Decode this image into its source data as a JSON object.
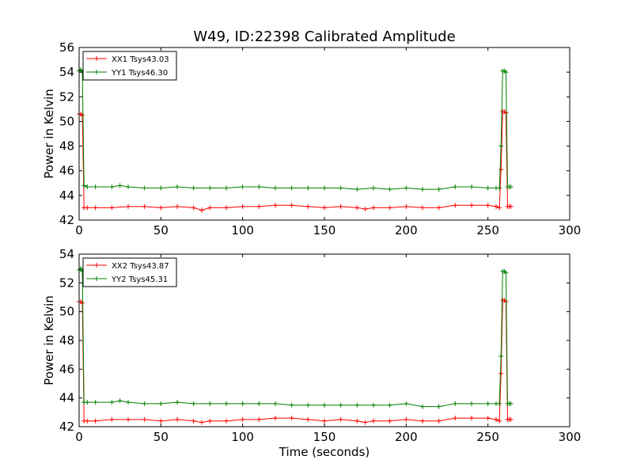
{
  "chart_data": [
    {
      "type": "line",
      "title": "W49, ID:22398 Calibrated Amplitude",
      "xlabel": "",
      "ylabel": "Power in Kelvin",
      "xlim": [
        0,
        300
      ],
      "ylim": [
        42,
        56
      ],
      "xticks": [
        0,
        50,
        100,
        150,
        200,
        250,
        300
      ],
      "yticks": [
        42,
        44,
        46,
        48,
        50,
        52,
        54,
        56
      ],
      "grid": false,
      "legend_position": "top-left",
      "series": [
        {
          "name": "XX1 Tsys43.03",
          "color": "#ff0000",
          "marker": "+",
          "x": [
            0,
            1,
            2,
            3,
            5,
            10,
            20,
            30,
            40,
            50,
            60,
            70,
            75,
            80,
            90,
            100,
            110,
            120,
            130,
            140,
            150,
            160,
            170,
            175,
            180,
            190,
            200,
            210,
            220,
            230,
            240,
            250,
            255,
            257,
            258,
            259,
            260,
            261,
            262,
            263,
            264
          ],
          "y": [
            50.6,
            50.6,
            50.5,
            43.0,
            43.0,
            43.0,
            43.0,
            43.1,
            43.1,
            43.0,
            43.1,
            43.0,
            42.8,
            43.0,
            43.0,
            43.1,
            43.1,
            43.2,
            43.2,
            43.1,
            43.0,
            43.1,
            43.0,
            42.9,
            43.0,
            43.0,
            43.1,
            43.0,
            43.0,
            43.2,
            43.2,
            43.2,
            43.1,
            43.0,
            46.1,
            50.8,
            50.8,
            50.7,
            43.1,
            43.1,
            43.1
          ]
        },
        {
          "name": "YY1 Tsys46.30",
          "color": "#008000",
          "marker": "+",
          "x": [
            0,
            1,
            2,
            3,
            5,
            10,
            20,
            25,
            30,
            40,
            50,
            60,
            70,
            80,
            90,
            100,
            110,
            120,
            130,
            140,
            150,
            160,
            170,
            180,
            190,
            200,
            210,
            220,
            230,
            240,
            250,
            255,
            257,
            258,
            259,
            260,
            261,
            262,
            263,
            264
          ],
          "y": [
            54.1,
            54.2,
            54.0,
            44.8,
            44.7,
            44.7,
            44.7,
            44.8,
            44.7,
            44.6,
            44.6,
            44.7,
            44.6,
            44.6,
            44.6,
            44.7,
            44.7,
            44.6,
            44.6,
            44.6,
            44.6,
            44.6,
            44.5,
            44.6,
            44.5,
            44.6,
            44.5,
            44.5,
            44.7,
            44.7,
            44.6,
            44.6,
            44.6,
            48.0,
            54.1,
            54.1,
            54.0,
            44.7,
            44.7,
            44.7
          ]
        }
      ]
    },
    {
      "type": "line",
      "title": "",
      "xlabel": "Time (seconds)",
      "ylabel": "Power in Kelvin",
      "xlim": [
        0,
        300
      ],
      "ylim": [
        42,
        54
      ],
      "xticks": [
        0,
        50,
        100,
        150,
        200,
        250,
        300
      ],
      "yticks": [
        42,
        44,
        46,
        48,
        50,
        52,
        54
      ],
      "grid": false,
      "legend_position": "top-left",
      "series": [
        {
          "name": "XX2 Tsys43.87",
          "color": "#ff0000",
          "marker": "+",
          "x": [
            0,
            1,
            2,
            3,
            5,
            10,
            20,
            30,
            40,
            50,
            60,
            70,
            75,
            80,
            90,
            100,
            110,
            120,
            130,
            140,
            150,
            160,
            170,
            175,
            180,
            190,
            200,
            210,
            220,
            230,
            240,
            250,
            255,
            257,
            258,
            259,
            260,
            261,
            262,
            263,
            264
          ],
          "y": [
            50.7,
            50.7,
            50.6,
            42.4,
            42.4,
            42.4,
            42.5,
            42.5,
            42.5,
            42.4,
            42.5,
            42.4,
            42.3,
            42.4,
            42.4,
            42.5,
            42.5,
            42.6,
            42.6,
            42.5,
            42.4,
            42.5,
            42.4,
            42.3,
            42.4,
            42.4,
            42.5,
            42.4,
            42.4,
            42.6,
            42.6,
            42.6,
            42.5,
            42.4,
            45.7,
            50.8,
            50.8,
            50.7,
            42.5,
            42.5,
            42.5
          ]
        },
        {
          "name": "YY2 Tsys45.31",
          "color": "#008000",
          "marker": "+",
          "x": [
            0,
            1,
            2,
            3,
            5,
            10,
            20,
            25,
            30,
            40,
            50,
            60,
            70,
            80,
            90,
            100,
            110,
            120,
            130,
            140,
            150,
            160,
            170,
            180,
            190,
            200,
            210,
            220,
            230,
            240,
            250,
            255,
            257,
            258,
            259,
            260,
            261,
            262,
            263,
            264
          ],
          "y": [
            52.9,
            53.0,
            52.8,
            43.7,
            43.7,
            43.7,
            43.7,
            43.8,
            43.7,
            43.6,
            43.6,
            43.7,
            43.6,
            43.6,
            43.6,
            43.6,
            43.6,
            43.6,
            43.5,
            43.5,
            43.5,
            43.5,
            43.5,
            43.5,
            43.5,
            43.6,
            43.4,
            43.4,
            43.6,
            43.6,
            43.6,
            43.6,
            43.6,
            46.9,
            52.8,
            52.8,
            52.7,
            43.6,
            43.6,
            43.6
          ]
        }
      ]
    }
  ]
}
